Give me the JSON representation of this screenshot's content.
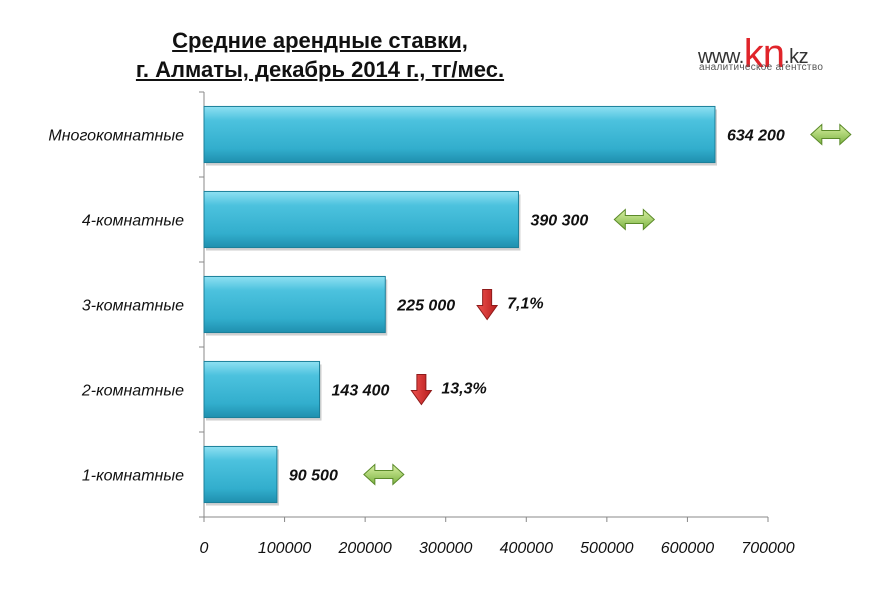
{
  "header": {
    "title_line1": "Средние арендные ставки,",
    "title_line2": "г. Алматы, декабрь 2014 г., тг/мес."
  },
  "logo": {
    "prefix": "www.",
    "brand": "kn",
    "suffix": ".kz",
    "tagline": "аналитическое агентство"
  },
  "colors": {
    "bar": "#3cb4d2",
    "bar_dark": "#1b7f9a",
    "arrow_flat": "#8bc34a",
    "arrow_down": "#d32f2f"
  },
  "chart_data": {
    "type": "bar",
    "orientation": "horizontal",
    "title": "Средние арендные ставки, г. Алматы, декабрь 2014 г., тг/мес.",
    "categories": [
      "Многокомнатные",
      "4-комнатные",
      "3-комнатные",
      "2-комнатные",
      "1-комнатные"
    ],
    "values": [
      634200,
      390300,
      225000,
      143400,
      90500
    ],
    "value_labels": [
      "634 200",
      "390 300",
      "225 000",
      "143 400",
      "90 500"
    ],
    "changes": [
      {
        "direction": "flat",
        "label": ""
      },
      {
        "direction": "flat",
        "label": ""
      },
      {
        "direction": "down",
        "label": "7,1%"
      },
      {
        "direction": "down",
        "label": "13,3%"
      },
      {
        "direction": "flat",
        "label": ""
      }
    ],
    "xlim": [
      0,
      700000
    ],
    "xticks": [
      0,
      100000,
      200000,
      300000,
      400000,
      500000,
      600000,
      700000
    ],
    "xtick_labels": [
      "0",
      "100000",
      "200000",
      "300000",
      "400000",
      "500000",
      "600000",
      "700000"
    ],
    "grid": false,
    "legend": "none"
  }
}
